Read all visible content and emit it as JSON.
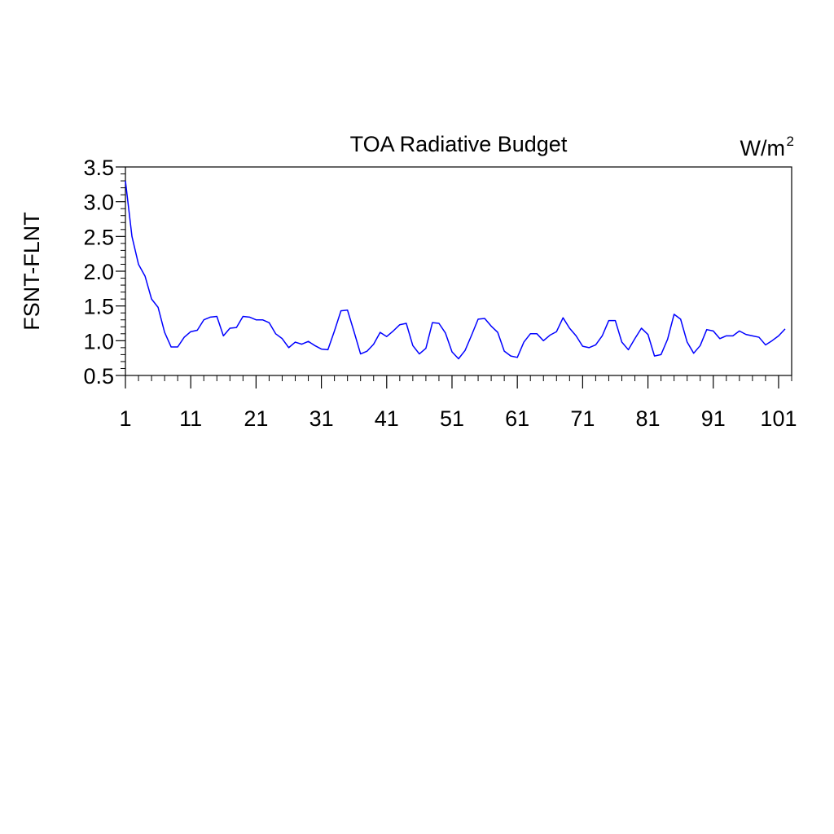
{
  "chart_data": {
    "type": "line",
    "title": "TOA Radiative Budget",
    "units": "W/m",
    "units_superscript": "2",
    "xlabel": "",
    "ylabel": "FSNT-FLNT",
    "xlim": [
      1,
      103
    ],
    "ylim": [
      0.5,
      3.5
    ],
    "x_ticks": [
      1,
      11,
      21,
      31,
      41,
      51,
      61,
      71,
      81,
      91,
      101
    ],
    "y_ticks": [
      0.5,
      1.0,
      1.5,
      2.0,
      2.5,
      3.0,
      3.5
    ],
    "y_tick_labels": [
      "0.5",
      "1.0",
      "1.5",
      "2.0",
      "2.5",
      "3.0",
      "3.5"
    ],
    "grid": false,
    "series": [
      {
        "color": "#0000ff",
        "x_start": 1,
        "values": [
          3.3,
          2.5,
          2.1,
          1.93,
          1.6,
          1.48,
          1.12,
          0.91,
          0.91,
          1.05,
          1.13,
          1.15,
          1.3,
          1.34,
          1.35,
          1.07,
          1.18,
          1.19,
          1.35,
          1.34,
          1.3,
          1.3,
          1.26,
          1.1,
          1.03,
          0.9,
          0.98,
          0.95,
          0.99,
          0.93,
          0.88,
          0.87,
          1.14,
          1.43,
          1.44,
          1.13,
          0.81,
          0.85,
          0.95,
          1.12,
          1.06,
          1.14,
          1.23,
          1.25,
          0.93,
          0.81,
          0.89,
          1.26,
          1.25,
          1.11,
          0.84,
          0.74,
          0.86,
          1.08,
          1.31,
          1.32,
          1.21,
          1.12,
          0.85,
          0.78,
          0.76,
          0.98,
          1.1,
          1.1,
          1.0,
          1.08,
          1.13,
          1.33,
          1.18,
          1.07,
          0.92,
          0.9,
          0.94,
          1.07,
          1.29,
          1.29,
          0.98,
          0.87,
          1.03,
          1.18,
          1.09,
          0.78,
          0.8,
          1.02,
          1.38,
          1.31,
          0.98,
          0.82,
          0.93,
          1.16,
          1.14,
          1.03,
          1.07,
          1.07,
          1.14,
          1.09,
          1.07,
          1.05,
          0.94,
          1.0,
          1.07,
          1.17
        ]
      }
    ]
  }
}
